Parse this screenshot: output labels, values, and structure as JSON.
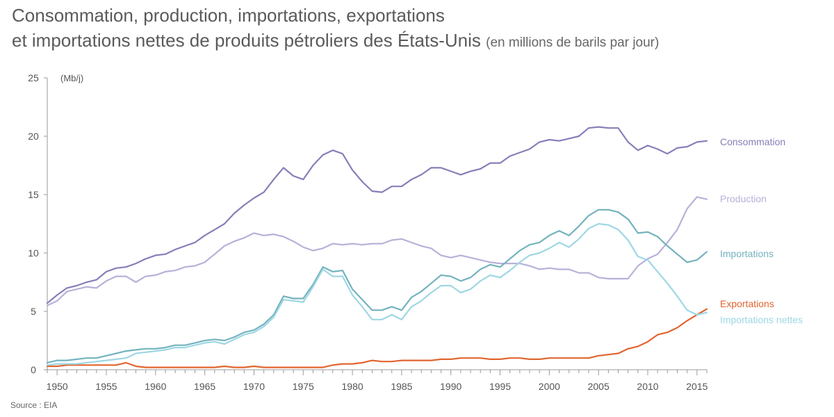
{
  "title": {
    "line1": "Consommation, production, importations, exportations",
    "line2": "et importations nettes de produits pétroliers des États-Unis",
    "subtitle": "(en millions de barils par jour)"
  },
  "source": "Source : EIA",
  "chart_data": {
    "type": "line",
    "ylabel": "(Mb/j)",
    "ylim": [
      0,
      25
    ],
    "xlim": [
      1949,
      2016
    ],
    "yticks": [
      0,
      5,
      10,
      15,
      20,
      25
    ],
    "xticks": [
      1950,
      1955,
      1960,
      1965,
      1970,
      1975,
      1980,
      1985,
      1990,
      1995,
      2000,
      2005,
      2010,
      2015
    ],
    "grid": false,
    "legend": "inline-right",
    "x": [
      1949,
      1950,
      1951,
      1952,
      1953,
      1954,
      1955,
      1956,
      1957,
      1958,
      1959,
      1960,
      1961,
      1962,
      1963,
      1964,
      1965,
      1966,
      1967,
      1968,
      1969,
      1970,
      1971,
      1972,
      1973,
      1974,
      1975,
      1976,
      1977,
      1978,
      1979,
      1980,
      1981,
      1982,
      1983,
      1984,
      1985,
      1986,
      1987,
      1988,
      1989,
      1990,
      1991,
      1992,
      1993,
      1994,
      1995,
      1996,
      1997,
      1998,
      1999,
      2000,
      2001,
      2002,
      2003,
      2004,
      2005,
      2006,
      2007,
      2008,
      2009,
      2010,
      2011,
      2012,
      2013,
      2014,
      2015,
      2016
    ],
    "series": [
      {
        "name": "Consommation",
        "color": "#8a7db8",
        "values": [
          5.7,
          6.4,
          7.0,
          7.2,
          7.5,
          7.7,
          8.4,
          8.7,
          8.8,
          9.1,
          9.5,
          9.8,
          9.9,
          10.3,
          10.6,
          10.9,
          11.5,
          12.0,
          12.5,
          13.4,
          14.1,
          14.7,
          15.2,
          16.3,
          17.3,
          16.6,
          16.3,
          17.5,
          18.4,
          18.8,
          18.5,
          17.1,
          16.1,
          15.3,
          15.2,
          15.7,
          15.7,
          16.3,
          16.7,
          17.3,
          17.3,
          17.0,
          16.7,
          17.0,
          17.2,
          17.7,
          17.7,
          18.3,
          18.6,
          18.9,
          19.5,
          19.7,
          19.6,
          19.8,
          20.0,
          20.7,
          20.8,
          20.7,
          20.7,
          19.5,
          18.8,
          19.2,
          18.9,
          18.5,
          19.0,
          19.1,
          19.5,
          19.6
        ]
      },
      {
        "name": "Production",
        "color": "#b9b0d8",
        "values": [
          5.5,
          5.9,
          6.7,
          6.9,
          7.1,
          7.0,
          7.6,
          8.0,
          8.0,
          7.5,
          8.0,
          8.1,
          8.4,
          8.5,
          8.8,
          8.9,
          9.2,
          9.9,
          10.6,
          11.0,
          11.3,
          11.7,
          11.5,
          11.6,
          11.4,
          11.0,
          10.5,
          10.2,
          10.4,
          10.8,
          10.7,
          10.8,
          10.7,
          10.8,
          10.8,
          11.1,
          11.2,
          10.9,
          10.6,
          10.4,
          9.8,
          9.6,
          9.8,
          9.6,
          9.4,
          9.2,
          9.1,
          9.1,
          9.1,
          8.9,
          8.6,
          8.7,
          8.6,
          8.6,
          8.3,
          8.3,
          7.9,
          7.8,
          7.8,
          7.8,
          8.9,
          9.5,
          9.9,
          10.9,
          12.0,
          13.8,
          14.8,
          14.6
        ]
      },
      {
        "name": "Importations",
        "color": "#73b3be",
        "values": [
          0.6,
          0.8,
          0.8,
          0.9,
          1.0,
          1.0,
          1.2,
          1.4,
          1.6,
          1.7,
          1.8,
          1.8,
          1.9,
          2.1,
          2.1,
          2.3,
          2.5,
          2.6,
          2.5,
          2.8,
          3.2,
          3.4,
          3.9,
          4.7,
          6.3,
          6.1,
          6.1,
          7.3,
          8.8,
          8.4,
          8.5,
          6.9,
          6.0,
          5.1,
          5.1,
          5.4,
          5.1,
          6.2,
          6.7,
          7.4,
          8.1,
          8.0,
          7.6,
          7.9,
          8.6,
          9.0,
          8.8,
          9.5,
          10.2,
          10.7,
          10.9,
          11.5,
          11.9,
          11.5,
          12.3,
          13.2,
          13.7,
          13.7,
          13.5,
          12.9,
          11.7,
          11.8,
          11.4,
          10.6,
          9.9,
          9.2,
          9.4,
          10.1
        ]
      },
      {
        "name": "Exportations",
        "color": "#e2652f",
        "values": [
          0.3,
          0.3,
          0.4,
          0.4,
          0.4,
          0.4,
          0.4,
          0.4,
          0.6,
          0.3,
          0.2,
          0.2,
          0.2,
          0.2,
          0.2,
          0.2,
          0.2,
          0.2,
          0.3,
          0.2,
          0.2,
          0.3,
          0.2,
          0.2,
          0.2,
          0.2,
          0.2,
          0.2,
          0.2,
          0.4,
          0.5,
          0.5,
          0.6,
          0.8,
          0.7,
          0.7,
          0.8,
          0.8,
          0.8,
          0.8,
          0.9,
          0.9,
          1.0,
          1.0,
          1.0,
          0.9,
          0.9,
          1.0,
          1.0,
          0.9,
          0.9,
          1.0,
          1.0,
          1.0,
          1.0,
          1.0,
          1.2,
          1.3,
          1.4,
          1.8,
          2.0,
          2.4,
          3.0,
          3.2,
          3.6,
          4.2,
          4.7,
          5.2
        ]
      },
      {
        "name": "Importations nettes",
        "color": "#9ed7e4",
        "values": [
          0.4,
          0.5,
          0.5,
          0.5,
          0.6,
          0.7,
          0.8,
          0.9,
          1.0,
          1.4,
          1.5,
          1.6,
          1.7,
          1.9,
          1.9,
          2.1,
          2.3,
          2.4,
          2.2,
          2.6,
          3.0,
          3.2,
          3.7,
          4.5,
          6.0,
          5.9,
          5.8,
          7.1,
          8.6,
          8.0,
          8.0,
          6.4,
          5.4,
          4.3,
          4.3,
          4.7,
          4.3,
          5.4,
          5.9,
          6.6,
          7.2,
          7.2,
          6.6,
          6.9,
          7.6,
          8.1,
          7.9,
          8.5,
          9.2,
          9.8,
          10.0,
          10.4,
          10.9,
          10.5,
          11.2,
          12.1,
          12.5,
          12.4,
          12.0,
          11.1,
          9.7,
          9.4,
          8.4,
          7.4,
          6.3,
          5.1,
          4.7,
          4.9
        ]
      }
    ]
  }
}
